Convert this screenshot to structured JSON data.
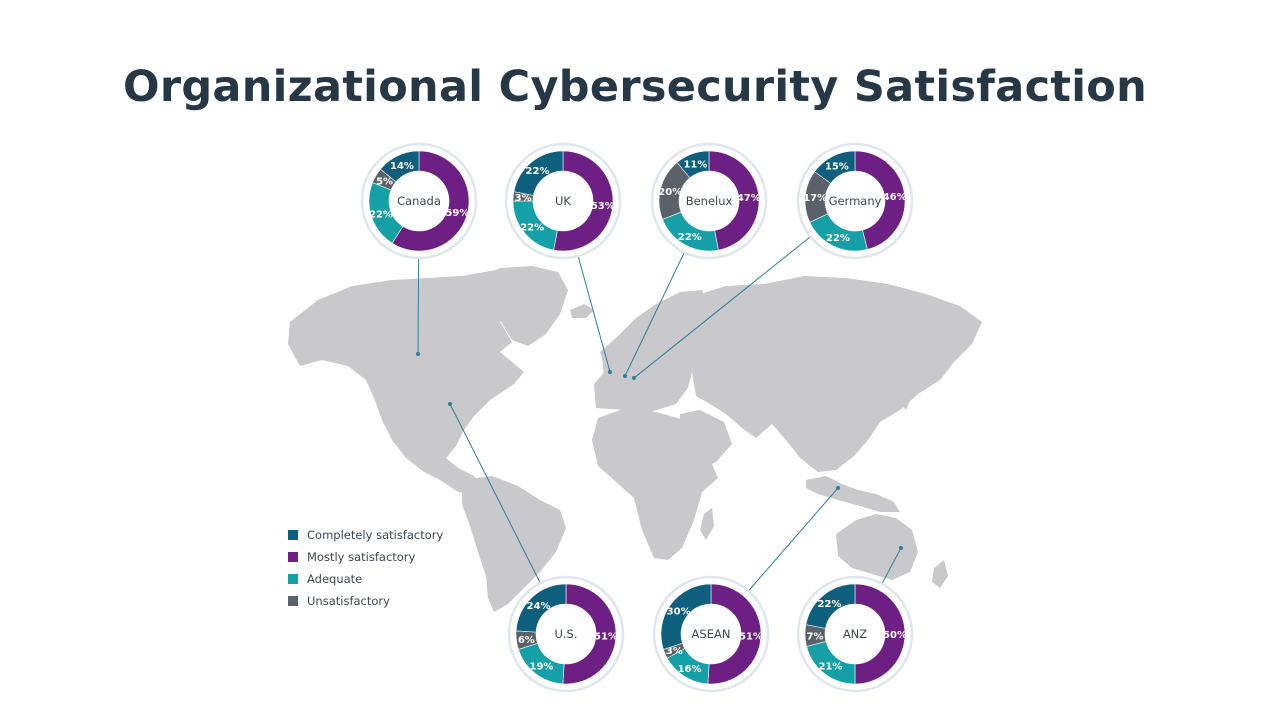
{
  "title": "Organizational Cybersecurity Satisfaction",
  "colors": {
    "completely": "#0e5f7e",
    "mostly": "#6e1f83",
    "adequate": "#14a0a6",
    "unsatisfactory": "#5b6169",
    "map": "#c9c9cb",
    "leader": "#2e7f99",
    "ring": "#dfe6ec"
  },
  "legend": [
    {
      "label": "Completely satisfactory",
      "color": "#0e5f7e"
    },
    {
      "label": "Mostly satisfactory",
      "color": "#6e1f83"
    },
    {
      "label": "Adequate",
      "color": "#14a0a6"
    },
    {
      "label": "Unsatisfactory",
      "color": "#5b6169"
    }
  ],
  "chart_data": {
    "type": "pie",
    "variant": "donut",
    "series_order": [
      "Completely satisfactory",
      "Mostly satisfactory",
      "Adequate",
      "Unsatisfactory"
    ],
    "regions": [
      {
        "name": "Canada",
        "values": [
          14,
          59,
          22,
          5
        ],
        "labels": [
          "14%",
          "59%",
          "22%",
          "5%"
        ]
      },
      {
        "name": "UK",
        "values": [
          22,
          53,
          22,
          3
        ],
        "labels": [
          "22%",
          "53%",
          "22%",
          "3%"
        ]
      },
      {
        "name": "Benelux",
        "values": [
          11,
          47,
          22,
          20
        ],
        "labels": [
          "11%",
          "47%",
          "22%",
          "20%"
        ]
      },
      {
        "name": "Germany",
        "values": [
          15,
          46,
          22,
          17
        ],
        "labels": [
          "15%",
          "46%",
          "22%",
          "17%"
        ]
      },
      {
        "name": "U.S.",
        "values": [
          24,
          51,
          19,
          6
        ],
        "labels": [
          "24%",
          "51%",
          "19%",
          "6%"
        ]
      },
      {
        "name": "ASEAN",
        "values": [
          30,
          51,
          16,
          3
        ],
        "labels": [
          "30%",
          "51%",
          "16%",
          "3%"
        ]
      },
      {
        "name": "ANZ",
        "values": [
          22,
          50,
          21,
          7
        ],
        "labels": [
          "22%",
          "50%",
          "21%",
          "7%"
        ]
      }
    ]
  }
}
